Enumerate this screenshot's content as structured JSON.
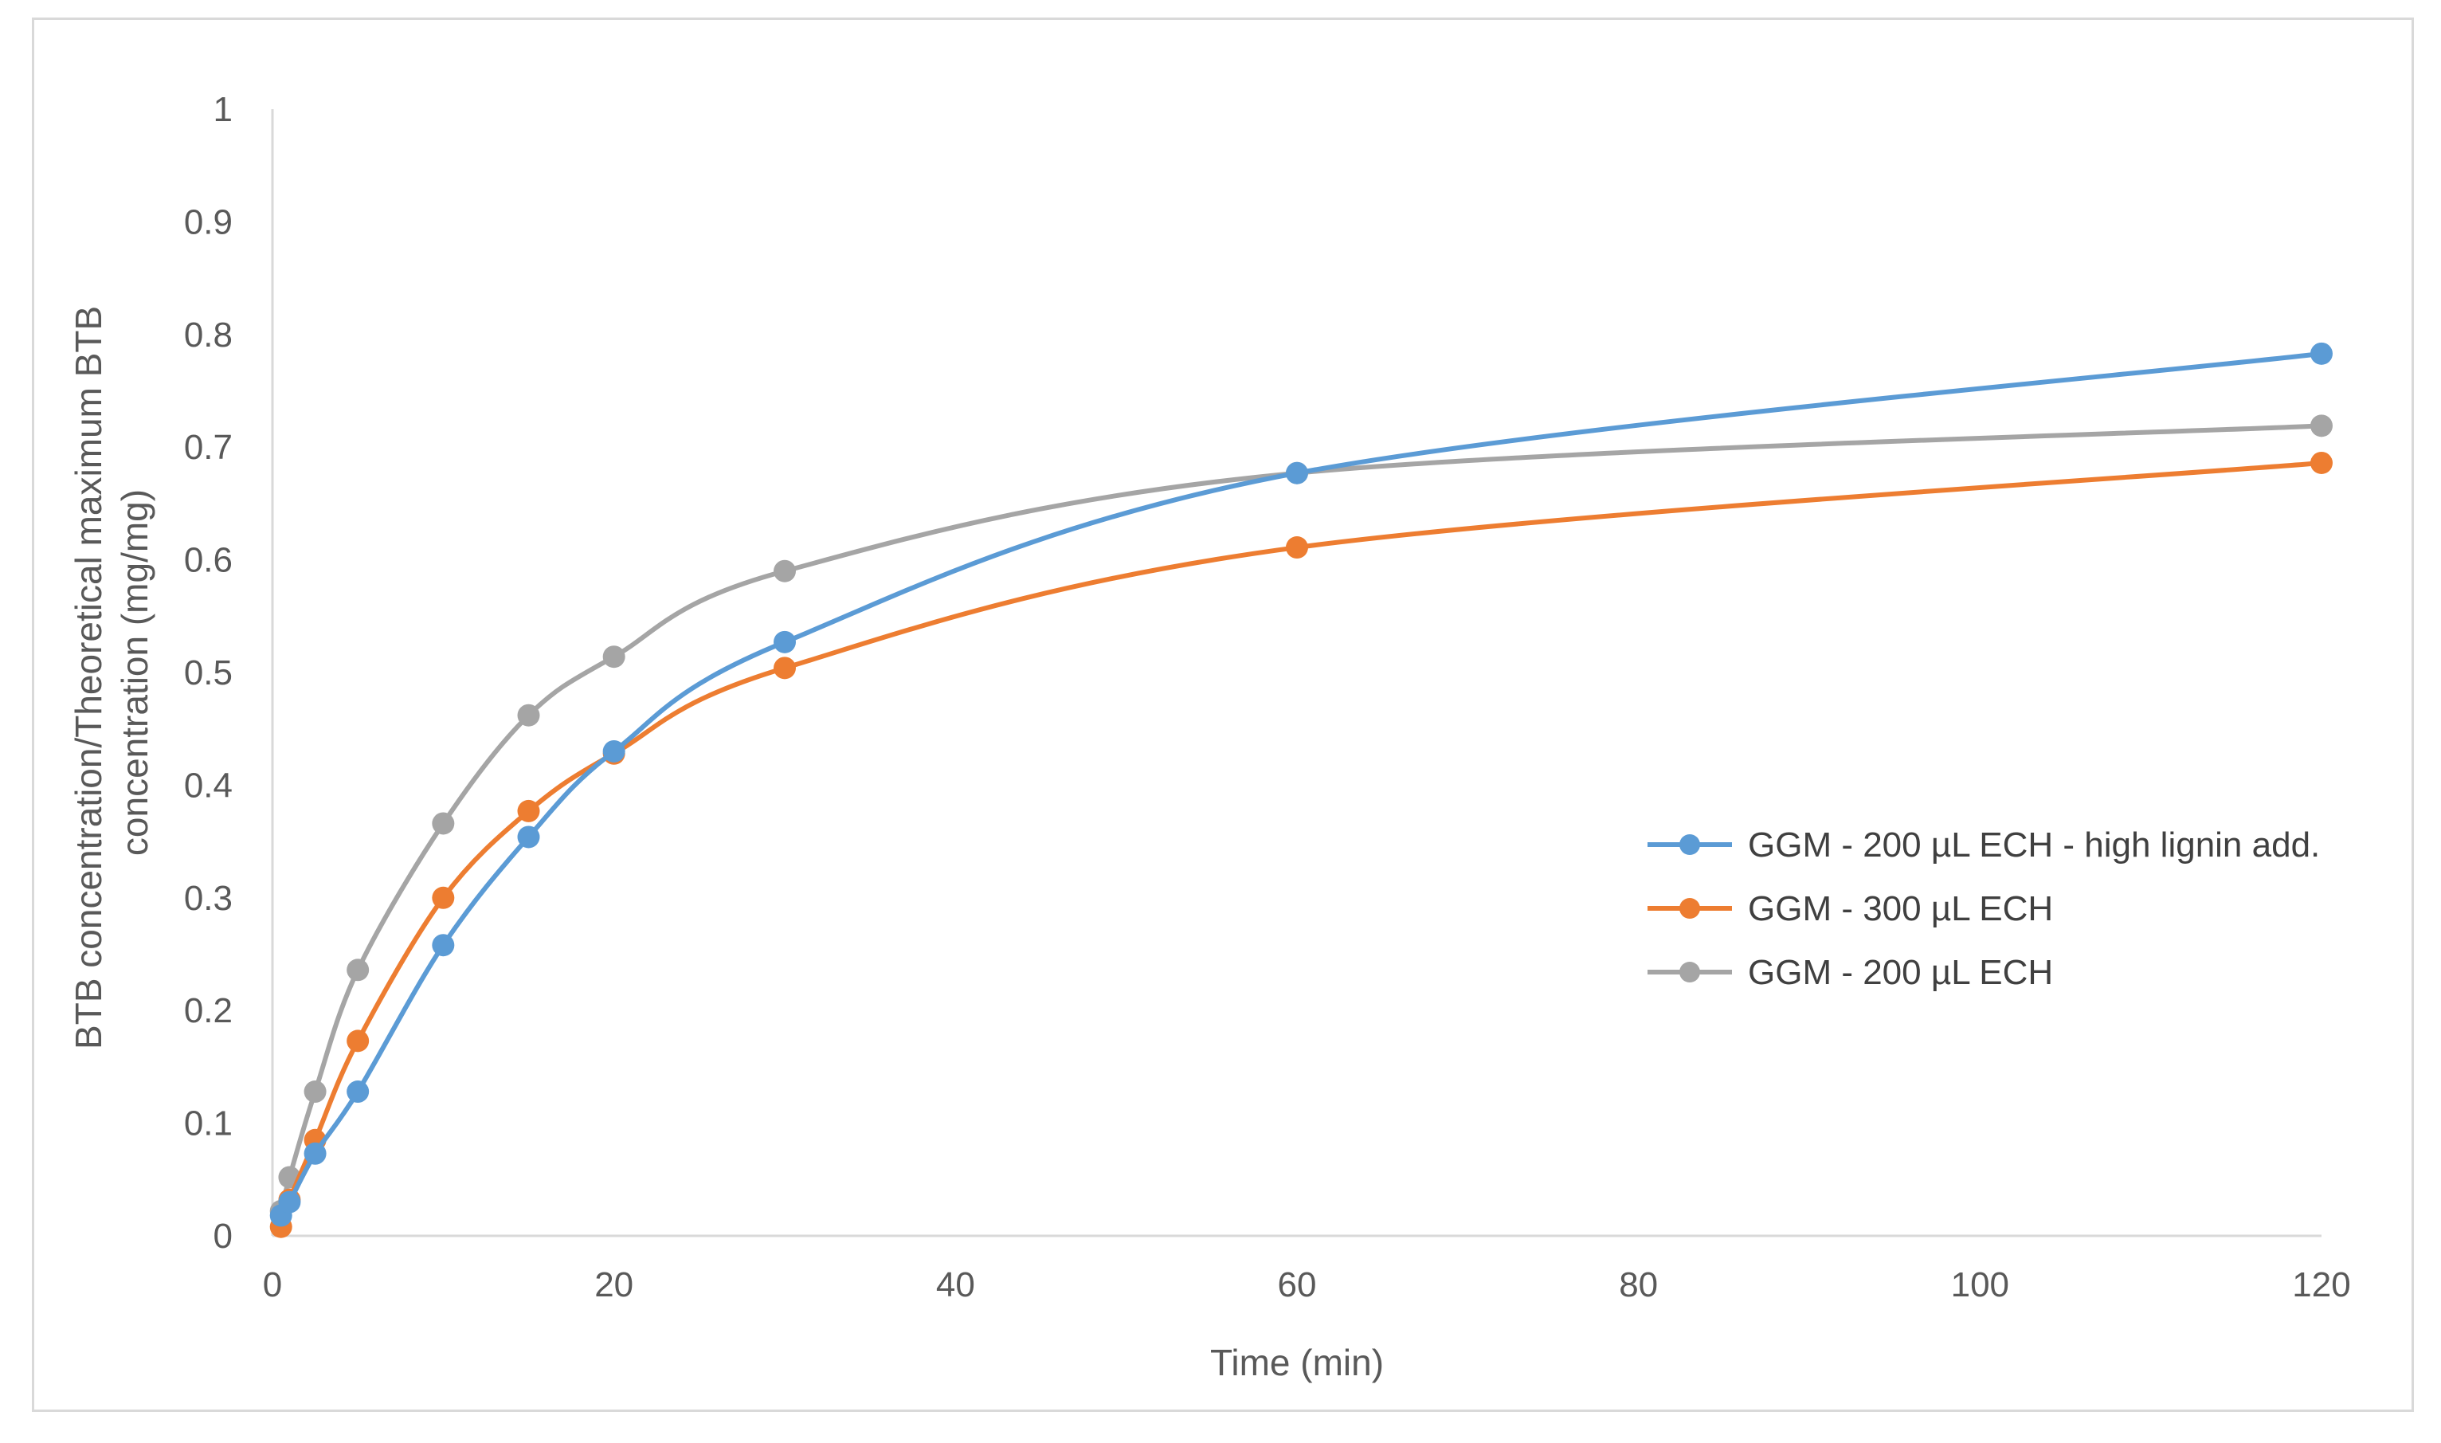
{
  "chart_data": {
    "type": "line",
    "title": "",
    "xlabel": "Time (min)",
    "ylabel_lines": [
      "BTB concentration/Theoretical maximum BTB",
      "concentration (mg/mg)"
    ],
    "xlim": [
      0,
      120
    ],
    "ylim": [
      0,
      1
    ],
    "x_ticks": [
      0,
      20,
      40,
      60,
      80,
      100,
      120
    ],
    "y_ticks": [
      0,
      0.1,
      0.2,
      0.3,
      0.4,
      0.5,
      0.6,
      0.7,
      0.8,
      0.9,
      1
    ],
    "x_tick_labels": [
      "0",
      "20",
      "40",
      "60",
      "80",
      "100",
      "120"
    ],
    "y_tick_labels": [
      "0",
      "0.1",
      "0.2",
      "0.3",
      "0.4",
      "0.5",
      "0.6",
      "0.7",
      "0.8",
      "0.9",
      "1"
    ],
    "grid": false,
    "smooth": true,
    "legend_position": "right",
    "series": [
      {
        "name": "GGM - 200 µL ECH - high lignin add.",
        "color": "#5b9bd5",
        "x": [
          0.5,
          1,
          2.5,
          5,
          10,
          15,
          20,
          30,
          60,
          120
        ],
        "y": [
          0.018,
          0.03,
          0.073,
          0.128,
          0.258,
          0.354,
          0.43,
          0.527,
          0.677,
          0.783
        ]
      },
      {
        "name": "GGM - 300 µL ECH",
        "color": "#ed7d31",
        "x": [
          0.5,
          1,
          2.5,
          5,
          10,
          15,
          20,
          30,
          60,
          120
        ],
        "y": [
          0.008,
          0.032,
          0.085,
          0.173,
          0.3,
          0.377,
          0.428,
          0.504,
          0.611,
          0.686
        ]
      },
      {
        "name": "GGM - 200 µL ECH",
        "color": "#a5a5a5",
        "x": [
          0.5,
          1,
          2.5,
          5,
          10,
          15,
          20,
          30,
          60,
          120
        ],
        "y": [
          0.022,
          0.052,
          0.128,
          0.236,
          0.366,
          0.462,
          0.514,
          0.59,
          0.677,
          0.719
        ]
      }
    ]
  }
}
